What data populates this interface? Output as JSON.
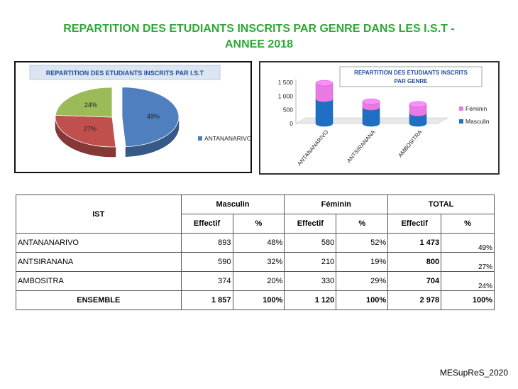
{
  "title_line1": "REPARTITION DES ETUDIANTS INSCRITS PAR GENRE  DANS LES I.S.T -",
  "title_line2": "ANNEE 2018",
  "footer": "MESupReS_2020",
  "chart_data": [
    {
      "type": "pie",
      "title": "REPARTITION DES ETUDIANTS INSCRITS PAR I.S.T",
      "labels": [
        "ANTANANARIVO",
        "ANTSIRANANA",
        "AMBOSITRA"
      ],
      "values": [
        49,
        27,
        24
      ],
      "data_labels": [
        "49%",
        "27%",
        "24%"
      ],
      "legend": [
        "ANTANANARIVO"
      ],
      "legend_position": "right",
      "colors": [
        "#4f7fbf",
        "#c0504d",
        "#9bbb59"
      ]
    },
    {
      "type": "bar",
      "title": "REPARTITION DES ETUDIANTS INSCRITS PAR GENRE",
      "categories": [
        "ANTANANARIVO",
        "ANTSIRANANA",
        "AMBOSITRA"
      ],
      "series": [
        {
          "name": "Masculin",
          "values": [
            893,
            590,
            374
          ],
          "color": "#1f6fc4"
        },
        {
          "name": "Féminin",
          "values": [
            580,
            210,
            330
          ],
          "color": "#e87be3"
        }
      ],
      "stacked": true,
      "ylim": [
        0,
        1500
      ],
      "yticks": [
        "0",
        "500",
        "1 000",
        "1 500"
      ],
      "legend_position": "right",
      "grid": false
    }
  ],
  "table": {
    "col_ist": "IST",
    "group_masc": "Masculin",
    "group_fem": "Féminin",
    "group_total": "TOTAL",
    "sub_effectif": "Effectif",
    "sub_pct": "%",
    "rows": [
      {
        "ist": "ANTANANARIVO",
        "m_eff": "893",
        "m_pct": "48%",
        "f_eff": "580",
        "f_pct": "52%",
        "t_eff": "1 473",
        "t_pct": "49%"
      },
      {
        "ist": "ANTSIRANANA",
        "m_eff": "590",
        "m_pct": "32%",
        "f_eff": "210",
        "f_pct": "19%",
        "t_eff": "800",
        "t_pct": "27%"
      },
      {
        "ist": "AMBOSITRA",
        "m_eff": "374",
        "m_pct": "20%",
        "f_eff": "330",
        "f_pct": "29%",
        "t_eff": "704",
        "t_pct": "24%"
      }
    ],
    "total_row": {
      "ist": "ENSEMBLE",
      "m_eff": "1 857",
      "m_pct": "100%",
      "f_eff": "1 120",
      "f_pct": "100%",
      "t_eff": "2 978",
      "t_pct": "100%"
    }
  }
}
